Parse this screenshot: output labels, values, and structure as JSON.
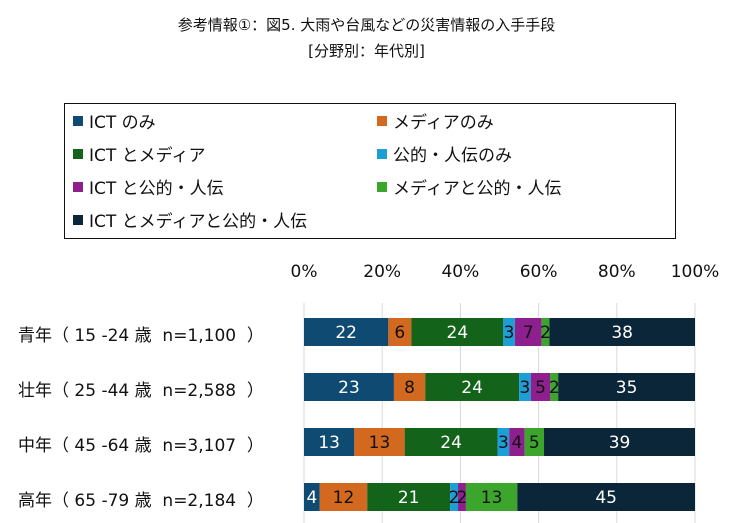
{
  "chart_data": {
    "type": "bar",
    "orientation": "horizontal",
    "stacked": "percent",
    "title": "参考情報①：図5. 大雨や台風などの災害情報の入手手段",
    "subtitle": "[分野別：年代別]",
    "categories": [
      "青年（ 15 -24 歳  n=1,100  ）",
      "壮年（ 25 -44 歳  n=2,588  ）",
      "中年（ 45 -64 歳  n=3,107  ）",
      "高年（ 65 -79 歳  n=2,184  ）"
    ],
    "series": [
      {
        "name": "ICT のみ",
        "color": "#0f4a73",
        "label_color": "#ffffff",
        "values": [
          22,
          23,
          13,
          4
        ]
      },
      {
        "name": "メディアのみ",
        "color": "#d2691e",
        "label_color": "#111111",
        "values": [
          6,
          8,
          13,
          12
        ]
      },
      {
        "name": "ICT とメディア",
        "color": "#14631a",
        "label_color": "#ffffff",
        "values": [
          24,
          24,
          24,
          21
        ]
      },
      {
        "name": "公的・人伝のみ",
        "color": "#1c9fd6",
        "label_color": "#111111",
        "values": [
          3,
          3,
          3,
          2
        ]
      },
      {
        "name": "ICT と公的・人伝",
        "color": "#8e1f8e",
        "label_color": "#111111",
        "values": [
          7,
          5,
          4,
          2
        ]
      },
      {
        "name": "メディアと公的・人伝",
        "color": "#3ca52c",
        "label_color": "#111111",
        "values": [
          2,
          2,
          5,
          13
        ]
      },
      {
        "name": "ICT とメディアと公的・人伝",
        "color": "#0b2539",
        "label_color": "#ffffff",
        "values": [
          38,
          35,
          39,
          45
        ]
      }
    ],
    "xlim": [
      0,
      100
    ],
    "xticks": [
      "0%",
      "20%",
      "40%",
      "60%",
      "80%",
      "100%"
    ],
    "grid": true,
    "legend_position": "top"
  }
}
